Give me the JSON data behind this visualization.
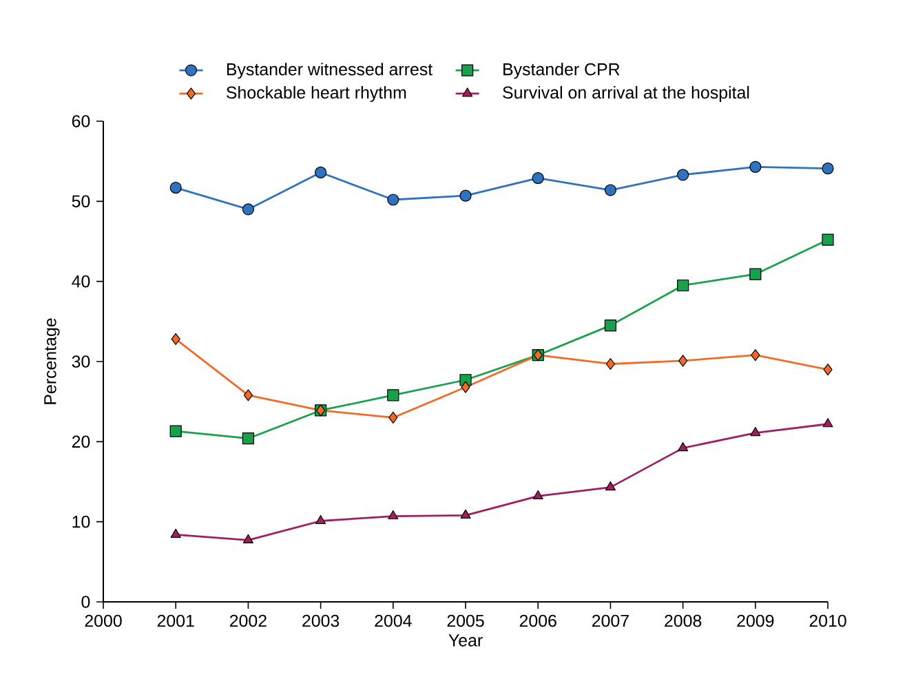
{
  "chart_data": {
    "type": "line",
    "xlabel": "Year",
    "ylabel": "Percentage",
    "x": [
      2001,
      2002,
      2003,
      2004,
      2005,
      2006,
      2007,
      2008,
      2009,
      2010
    ],
    "series": [
      {
        "name": "Bystander witnessed arrest",
        "color": "#2f72c0",
        "marker": "circle",
        "values": [
          51.7,
          49.0,
          53.6,
          50.2,
          50.7,
          52.9,
          51.4,
          53.3,
          54.3,
          54.1
        ]
      },
      {
        "name": "Bystander CPR",
        "color": "#17a14a",
        "marker": "square",
        "values": [
          21.3,
          20.4,
          23.9,
          25.8,
          27.7,
          30.8,
          34.5,
          39.5,
          40.9,
          45.2
        ]
      },
      {
        "name": "Shockable heart rhythm",
        "color": "#f26a25",
        "marker": "diamond",
        "values": [
          32.8,
          25.8,
          23.9,
          23.0,
          26.8,
          30.8,
          29.7,
          30.1,
          30.8,
          29.0
        ]
      },
      {
        "name": "Survival on arrival at the hospital",
        "color": "#a01e62",
        "marker": "triangle",
        "values": [
          8.4,
          7.7,
          10.1,
          10.7,
          10.8,
          13.2,
          14.3,
          19.2,
          21.1,
          22.2
        ]
      }
    ],
    "xlim": [
      2000,
      2010
    ],
    "xticks": [
      2000,
      2001,
      2002,
      2003,
      2004,
      2005,
      2006,
      2007,
      2008,
      2009,
      2010
    ],
    "ylim": [
      0,
      60
    ],
    "yticks": [
      0,
      10,
      20,
      30,
      40,
      50,
      60
    ],
    "grid": false,
    "legend": "top",
    "line_style": "solid"
  }
}
